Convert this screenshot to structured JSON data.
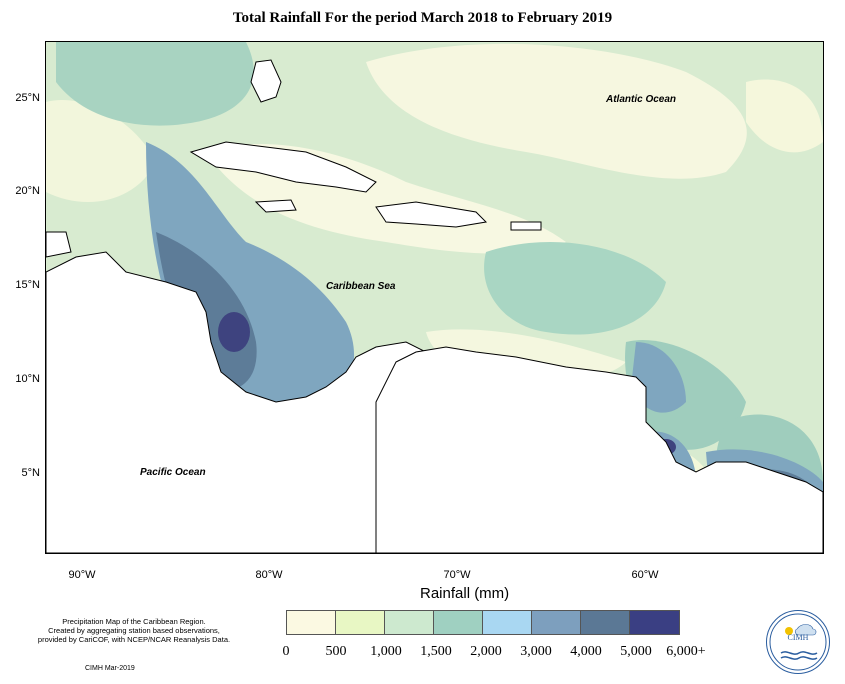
{
  "title": "Total Rainfall For the period March 2018 to February 2019",
  "map": {
    "lat_labels": [
      "25°N",
      "20°N",
      "15°N",
      "10°N",
      "5°N"
    ],
    "lon_labels": [
      "90°W",
      "80°W",
      "70°W",
      "60°W"
    ],
    "ocean_labels": {
      "atlantic": "Atlantic Ocean",
      "caribbean": "Caribbean Sea",
      "pacific": "Pacific Ocean"
    }
  },
  "legend": {
    "units_label": "Rainfall (mm)",
    "colors": [
      "#fbf9e2",
      "#e8f7c4",
      "#cde9cf",
      "#9fd0c1",
      "#a9d7f2",
      "#7d9fbe",
      "#5b7895",
      "#3a3f83"
    ],
    "tick_labels": [
      "0",
      "500",
      "1,000",
      "1,500",
      "2,000",
      "3,000",
      "4,000",
      "5,000",
      "6,000+"
    ]
  },
  "notes": {
    "description": "Precipitation Map of the Caribbean Region.\nCreated by aggregating station based observations,\nprovided by CariCOF, with NCEP/NCAR Reanalysis Data.",
    "credit": "CIMH Mar-2019"
  },
  "logo": {
    "name": "cimh-logo",
    "text": "CIMH"
  }
}
